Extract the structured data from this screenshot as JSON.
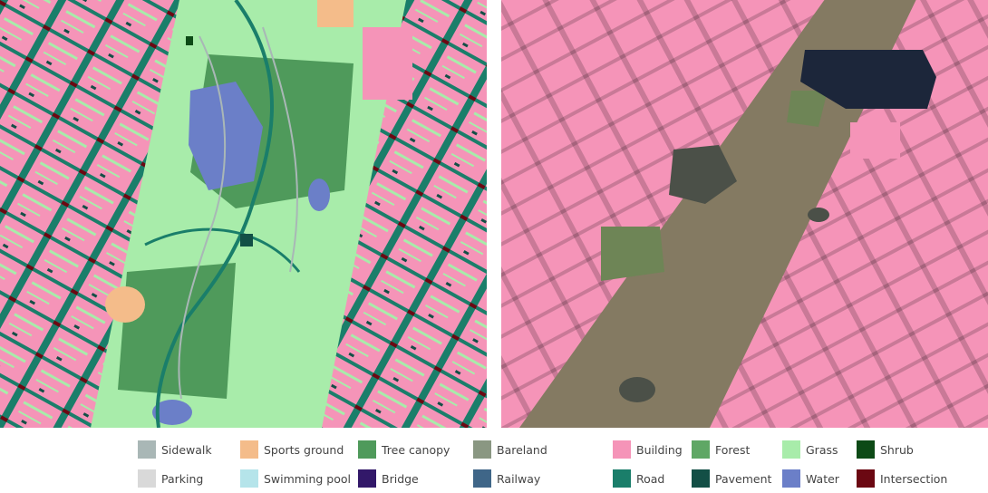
{
  "colors": {
    "building": "#f594b8",
    "road": "#1a7e6a",
    "intersection": "#6b0812",
    "grass": "#a8ecaa",
    "tree_canopy": "#4f9a5b",
    "forest": "#5fa765",
    "water": "#6b7fc8",
    "sports": "#f4bc8a",
    "sidewalk": "#a9b7b6",
    "pavement": "#134f46",
    "shrub": "#0d4a16",
    "bareland": "#8a9782",
    "railway": "#3f6688",
    "bridge": "#321869",
    "parking": "#d9d9d9",
    "pool": "#b5e4ea",
    "photo_ground": "#847a62",
    "photo_dark": "#4b5048",
    "photo_green": "#6e8556",
    "photo_water": "#1c263a"
  },
  "legend": [
    {
      "label": "Sidewalk",
      "color": "#a9b7b6"
    },
    {
      "label": "Sports ground",
      "color": "#f4bc8a"
    },
    {
      "label": "Tree canopy",
      "color": "#4f9a5b"
    },
    {
      "label": "Bareland",
      "color": "#8a9782"
    },
    {
      "label": "Building",
      "color": "#f594b8"
    },
    {
      "label": "Forest",
      "color": "#5fa765"
    },
    {
      "label": "Grass",
      "color": "#a8ecaa"
    },
    {
      "label": "Shrub",
      "color": "#0d4a16"
    },
    {
      "label": "Parking",
      "color": "#d9d9d9"
    },
    {
      "label": "Swimming pool",
      "color": "#b5e4ea"
    },
    {
      "label": "Bridge",
      "color": "#321869"
    },
    {
      "label": "Railway",
      "color": "#3f6688"
    },
    {
      "label": "Road",
      "color": "#1a7e6a"
    },
    {
      "label": "Pavement",
      "color": "#134f46"
    },
    {
      "label": "Water",
      "color": "#6b7fc8"
    },
    {
      "label": "Intersection",
      "color": "#6b0812"
    }
  ]
}
